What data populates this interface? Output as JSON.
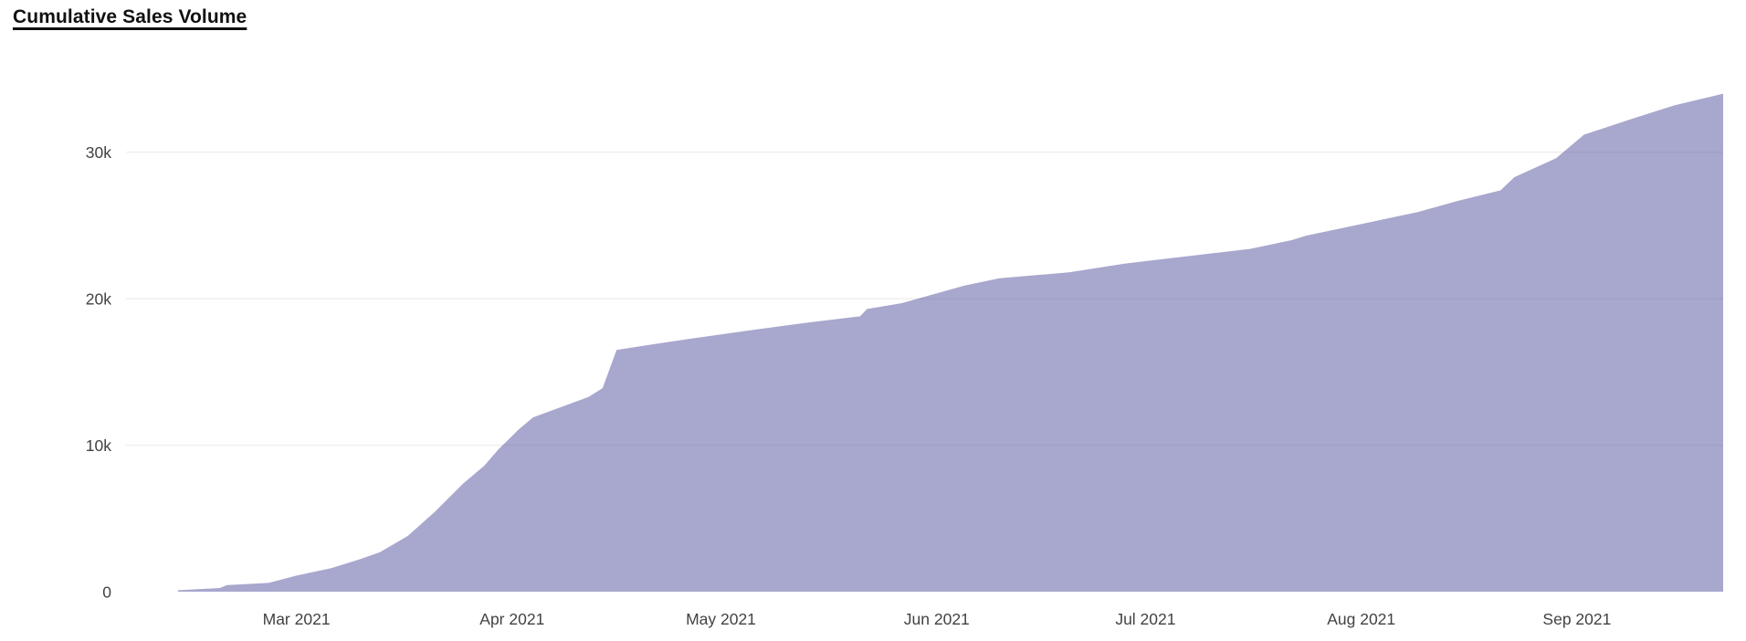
{
  "chart": {
    "title": "Cumulative Sales Volume"
  },
  "chart_data": {
    "type": "area",
    "title": "Cumulative Sales Volume",
    "series": [
      {
        "name": "Cumulative Sales Volume",
        "points": [
          [
            "2021-02-12",
            100
          ],
          [
            "2021-02-18",
            250
          ],
          [
            "2021-02-19",
            450
          ],
          [
            "2021-02-25",
            600
          ],
          [
            "2021-03-01",
            1100
          ],
          [
            "2021-03-06",
            1600
          ],
          [
            "2021-03-10",
            2200
          ],
          [
            "2021-03-13",
            2700
          ],
          [
            "2021-03-17",
            3800
          ],
          [
            "2021-03-21",
            5500
          ],
          [
            "2021-03-25",
            7400
          ],
          [
            "2021-03-28",
            8600
          ],
          [
            "2021-03-30",
            9700
          ],
          [
            "2021-04-02",
            11100
          ],
          [
            "2021-04-04",
            11900
          ],
          [
            "2021-04-08",
            12600
          ],
          [
            "2021-04-12",
            13300
          ],
          [
            "2021-04-14",
            13900
          ],
          [
            "2021-04-16",
            16500
          ],
          [
            "2021-04-20",
            16800
          ],
          [
            "2021-04-27",
            17300
          ],
          [
            "2021-05-06",
            17900
          ],
          [
            "2021-05-14",
            18400
          ],
          [
            "2021-05-21",
            18800
          ],
          [
            "2021-05-22",
            19300
          ],
          [
            "2021-05-27",
            19700
          ],
          [
            "2021-06-05",
            20900
          ],
          [
            "2021-06-10",
            21400
          ],
          [
            "2021-06-20",
            21800
          ],
          [
            "2021-06-28",
            22400
          ],
          [
            "2021-07-07",
            22900
          ],
          [
            "2021-07-16",
            23400
          ],
          [
            "2021-07-22",
            24000
          ],
          [
            "2021-07-24",
            24300
          ],
          [
            "2021-07-31",
            25000
          ],
          [
            "2021-08-05",
            25500
          ],
          [
            "2021-08-09",
            25900
          ],
          [
            "2021-08-15",
            26700
          ],
          [
            "2021-08-21",
            27400
          ],
          [
            "2021-08-23",
            28300
          ],
          [
            "2021-08-29",
            29600
          ],
          [
            "2021-09-02",
            31200
          ],
          [
            "2021-09-09",
            32300
          ],
          [
            "2021-09-15",
            33200
          ],
          [
            "2021-09-22",
            34000
          ]
        ]
      }
    ],
    "x_type": "date",
    "x_range": [
      "2021-02-12",
      "2021-09-22"
    ],
    "ylim": [
      0,
      35000
    ],
    "grid": "horizontal",
    "legend_position": "none",
    "y_ticks": [
      {
        "value": 0,
        "label": "0"
      },
      {
        "value": 10000,
        "label": "10k"
      },
      {
        "value": 20000,
        "label": "20k"
      },
      {
        "value": 30000,
        "label": "30k"
      }
    ],
    "x_ticks": [
      {
        "date": "2021-03-01",
        "label": "Mar 2021"
      },
      {
        "date": "2021-04-01",
        "label": "Apr 2021"
      },
      {
        "date": "2021-05-01",
        "label": "May 2021"
      },
      {
        "date": "2021-06-01",
        "label": "Jun 2021"
      },
      {
        "date": "2021-07-01",
        "label": "Jul 2021"
      },
      {
        "date": "2021-08-01",
        "label": "Aug 2021"
      },
      {
        "date": "2021-09-01",
        "label": "Sep 2021"
      }
    ],
    "colors": {
      "area_base": "#5B59A3",
      "area_opacity": 0.53,
      "area_rendered": "#A8A7CE",
      "gridline": "#F0F0F0",
      "tick_label": "#424242",
      "title": "#111111",
      "background": "#FFFFFF"
    }
  }
}
